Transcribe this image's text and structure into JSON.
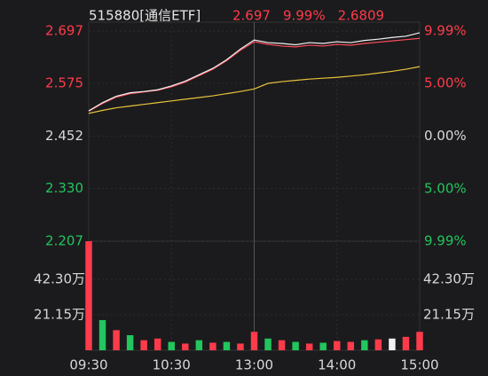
{
  "chart_data": {
    "type": "line",
    "title": "515880[通信ETF]",
    "annotations": [
      "2.697",
      "9.99%",
      "2.6809"
    ],
    "annotation_color": "#ff3b4a",
    "x": [
      0,
      10,
      20,
      30,
      40,
      50,
      60,
      70,
      80,
      90,
      100,
      110,
      120,
      130,
      140,
      150,
      160,
      170,
      180,
      190,
      200,
      210,
      220,
      230,
      240
    ],
    "xlim": [
      0,
      240
    ],
    "xticks": [
      {
        "value": 0,
        "label": "09:30"
      },
      {
        "value": 60,
        "label": "10:30"
      },
      {
        "value": 120,
        "label": "13:00"
      },
      {
        "value": 180,
        "label": "14:00"
      },
      {
        "value": 240,
        "label": "15:00"
      }
    ],
    "series": [
      {
        "color": "#e8c33a",
        "values": [
          2.505,
          2.512,
          2.518,
          2.522,
          2.526,
          2.53,
          2.534,
          2.538,
          2.542,
          2.546,
          2.551,
          2.556,
          2.562,
          2.575,
          2.579,
          2.582,
          2.585,
          2.587,
          2.589,
          2.592,
          2.595,
          2.599,
          2.603,
          2.608,
          2.614
        ]
      },
      {
        "color": "#ff4d5a",
        "values": [
          2.51,
          2.528,
          2.543,
          2.551,
          2.555,
          2.559,
          2.567,
          2.578,
          2.593,
          2.608,
          2.628,
          2.652,
          2.672,
          2.666,
          2.662,
          2.66,
          2.664,
          2.662,
          2.666,
          2.664,
          2.668,
          2.671,
          2.674,
          2.677,
          2.68
        ]
      },
      {
        "color": "#f2f2f2",
        "values": [
          2.511,
          2.53,
          2.545,
          2.553,
          2.556,
          2.56,
          2.569,
          2.58,
          2.595,
          2.61,
          2.63,
          2.655,
          2.676,
          2.67,
          2.668,
          2.665,
          2.67,
          2.668,
          2.672,
          2.67,
          2.675,
          2.678,
          2.682,
          2.685,
          2.693
        ]
      }
    ],
    "ylim": [
      2.207,
      2.697
    ],
    "yticks": [
      2.697,
      2.575,
      2.452,
      {
        "value": 2.33,
        "label": "2.330"
      },
      2.207
    ],
    "ytick_colors": [
      "#ff3b4a",
      "#ff3b4a",
      "#d8d8d8",
      "#22c55e",
      "#22c55e"
    ],
    "y2lim": [
      -9.99,
      9.99
    ],
    "y2ticks": [
      {
        "value": 9.99,
        "label": "9.99%"
      },
      {
        "value": 5,
        "label": "5.00%"
      },
      {
        "value": 0,
        "label": "0.00%"
      },
      {
        "value": -5,
        "label": "5.00%"
      },
      {
        "value": -9.99,
        "label": "9.99%"
      }
    ],
    "volume": [
      650000,
      180000,
      120000,
      90000,
      60000,
      70000,
      50000,
      40000,
      60000,
      45000,
      50000,
      40000,
      110000,
      70000,
      60000,
      50000,
      40000,
      45000,
      55000,
      50000,
      60000,
      65000,
      70000,
      80000,
      110000
    ],
    "volume_colors": [
      "#ff3b4a",
      "#22c55e",
      "#ff3b4a",
      "#22c55e",
      "#ff3b4a",
      "#ff3b4a",
      "#22c55e",
      "#ff3b4a",
      "#22c55e",
      "#ff3b4a",
      "#22c55e",
      "#ff3b4a",
      "#ff3b4a",
      "#22c55e",
      "#ff3b4a",
      "#22c55e",
      "#ff3b4a",
      "#22c55e",
      "#ff3b4a",
      "#ff3b4a",
      "#22c55e",
      "#ff3b4a",
      "#f2f2f2",
      "#ff3b4a",
      "#ff3b4a"
    ],
    "vlim": [
      0,
      650000
    ],
    "vticks": [
      {
        "value": 423000,
        "label": "42.30万"
      },
      {
        "value": 211500,
        "label": "21.15万"
      }
    ],
    "grid": true
  }
}
